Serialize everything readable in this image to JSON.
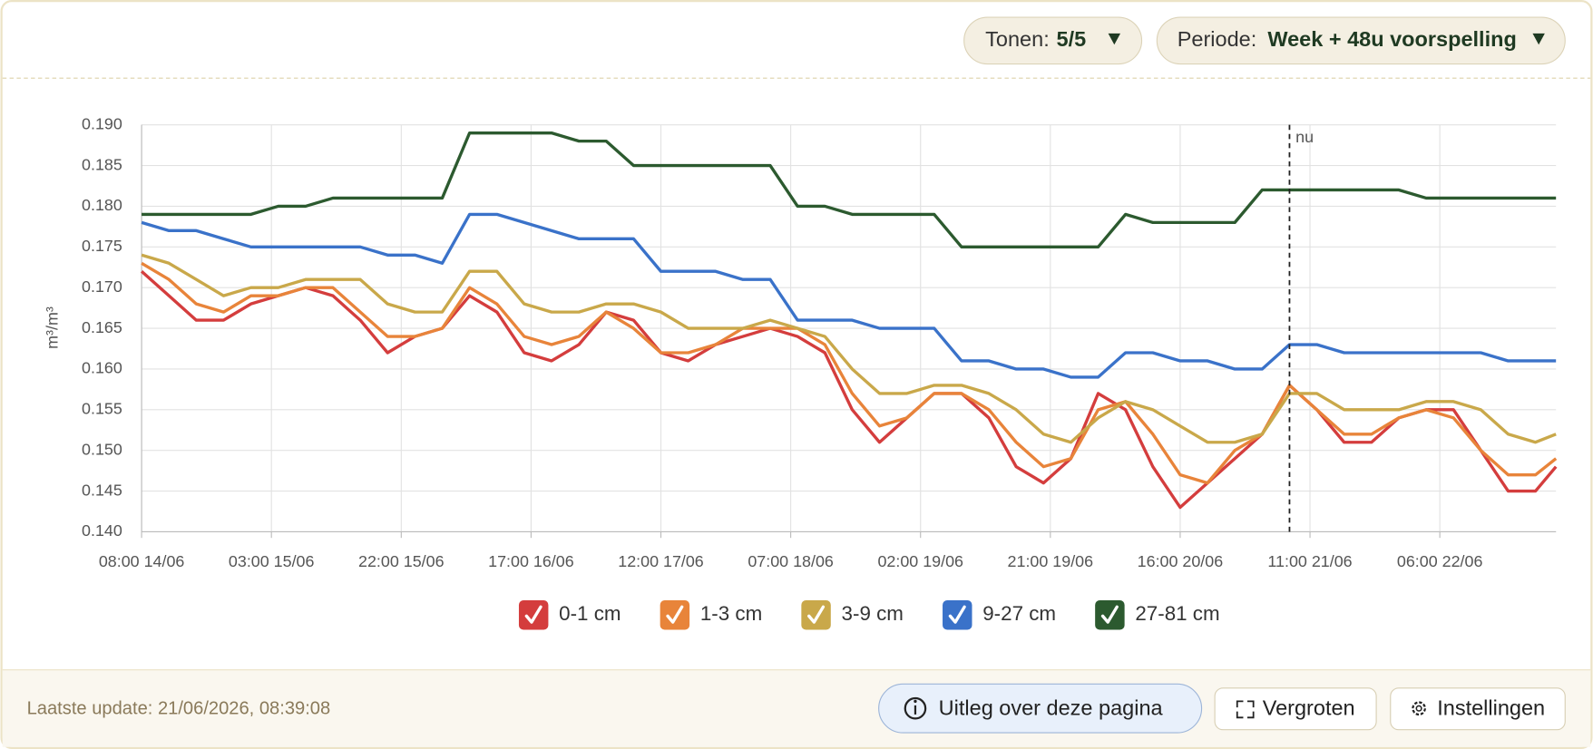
{
  "toolbar": {
    "tones_label": "Tonen:",
    "tones_value": "5/5",
    "period_label": "Periode:",
    "period_value": "Week + 48u voorspelling"
  },
  "chart_data": {
    "type": "line",
    "ylabel": "m³/m³",
    "x": [
      0,
      4,
      8,
      12,
      16,
      20,
      24,
      28,
      32,
      36,
      40,
      44,
      48,
      52,
      56,
      60,
      64,
      68,
      72,
      76,
      80,
      84,
      88,
      92,
      96,
      100,
      104,
      108,
      112,
      116,
      120,
      124,
      128,
      132,
      136,
      140,
      144,
      148,
      152,
      156,
      160,
      164,
      168,
      172,
      176,
      180,
      184,
      188,
      192,
      196,
      200,
      204,
      207
    ],
    "xlim": [
      0,
      207
    ],
    "xticks": [
      {
        "value": 0,
        "label": "08:00 14/06"
      },
      {
        "value": 19,
        "label": "03:00 15/06"
      },
      {
        "value": 38,
        "label": "22:00 15/06"
      },
      {
        "value": 57,
        "label": "17:00 16/06"
      },
      {
        "value": 76,
        "label": "12:00 17/06"
      },
      {
        "value": 95,
        "label": "07:00 18/06"
      },
      {
        "value": 114,
        "label": "02:00 19/06"
      },
      {
        "value": 133,
        "label": "21:00 19/06"
      },
      {
        "value": 152,
        "label": "16:00 20/06"
      },
      {
        "value": 171,
        "label": "11:00 21/06"
      },
      {
        "value": 190,
        "label": "06:00 22/06"
      }
    ],
    "ylim": [
      0.14,
      0.19
    ],
    "yticks": [
      {
        "value": 0.14,
        "label": "0.140"
      },
      0.145,
      {
        "value": 0.15,
        "label": "0.150"
      },
      0.155,
      {
        "value": 0.16,
        "label": "0.160"
      },
      0.165,
      {
        "value": 0.17,
        "label": "0.170"
      },
      0.175,
      {
        "value": 0.18,
        "label": "0.180"
      },
      0.185,
      {
        "value": 0.19,
        "label": "0.190"
      }
    ],
    "grid": true,
    "annotation": {
      "x": 168,
      "label": "nu"
    },
    "series": [
      {
        "name": "0-1 cm",
        "color": "#d43d3d",
        "values": [
          0.172,
          0.169,
          0.166,
          0.166,
          0.168,
          0.169,
          0.17,
          0.169,
          0.166,
          0.162,
          0.164,
          0.165,
          0.169,
          0.167,
          0.162,
          0.161,
          0.163,
          0.167,
          0.166,
          0.162,
          0.161,
          0.163,
          0.164,
          0.165,
          0.164,
          0.162,
          0.155,
          0.151,
          0.154,
          0.157,
          0.157,
          0.154,
          0.148,
          0.146,
          0.149,
          0.157,
          0.155,
          0.148,
          0.143,
          0.146,
          0.149,
          0.152,
          0.158,
          0.155,
          0.151,
          0.151,
          0.154,
          0.155,
          0.155,
          0.15,
          0.145,
          0.145,
          0.148
        ]
      },
      {
        "name": "1-3 cm",
        "color": "#e8843a",
        "values": [
          0.173,
          0.171,
          0.168,
          0.167,
          0.169,
          0.169,
          0.17,
          0.17,
          0.167,
          0.164,
          0.164,
          0.165,
          0.17,
          0.168,
          0.164,
          0.163,
          0.164,
          0.167,
          0.165,
          0.162,
          0.162,
          0.163,
          0.165,
          0.165,
          0.165,
          0.163,
          0.157,
          0.153,
          0.154,
          0.157,
          0.157,
          0.155,
          0.151,
          0.148,
          0.149,
          0.155,
          0.156,
          0.152,
          0.147,
          0.146,
          0.15,
          0.152,
          0.158,
          0.155,
          0.152,
          0.152,
          0.154,
          0.155,
          0.154,
          0.15,
          0.147,
          0.147,
          0.149
        ]
      },
      {
        "name": "3-9 cm",
        "color": "#c9a84a",
        "values": [
          0.174,
          0.173,
          0.171,
          0.169,
          0.17,
          0.17,
          0.171,
          0.171,
          0.171,
          0.168,
          0.167,
          0.167,
          0.172,
          0.172,
          0.168,
          0.167,
          0.167,
          0.168,
          0.168,
          0.167,
          0.165,
          0.165,
          0.165,
          0.166,
          0.165,
          0.164,
          0.16,
          0.157,
          0.157,
          0.158,
          0.158,
          0.157,
          0.155,
          0.152,
          0.151,
          0.154,
          0.156,
          0.155,
          0.153,
          0.151,
          0.151,
          0.152,
          0.157,
          0.157,
          0.155,
          0.155,
          0.155,
          0.156,
          0.156,
          0.155,
          0.152,
          0.151,
          0.152
        ]
      },
      {
        "name": "9-27 cm",
        "color": "#3a72c9",
        "values": [
          0.178,
          0.177,
          0.177,
          0.176,
          0.175,
          0.175,
          0.175,
          0.175,
          0.175,
          0.174,
          0.174,
          0.173,
          0.179,
          0.179,
          0.178,
          0.177,
          0.176,
          0.176,
          0.176,
          0.172,
          0.172,
          0.172,
          0.171,
          0.171,
          0.166,
          0.166,
          0.166,
          0.165,
          0.165,
          0.165,
          0.161,
          0.161,
          0.16,
          0.16,
          0.159,
          0.159,
          0.162,
          0.162,
          0.161,
          0.161,
          0.16,
          0.16,
          0.163,
          0.163,
          0.162,
          0.162,
          0.162,
          0.162,
          0.162,
          0.162,
          0.161,
          0.161,
          0.161
        ]
      },
      {
        "name": "27-81 cm",
        "color": "#2c5a2f",
        "values": [
          0.179,
          0.179,
          0.179,
          0.179,
          0.179,
          0.18,
          0.18,
          0.181,
          0.181,
          0.181,
          0.181,
          0.181,
          0.189,
          0.189,
          0.189,
          0.189,
          0.188,
          0.188,
          0.185,
          0.185,
          0.185,
          0.185,
          0.185,
          0.185,
          0.18,
          0.18,
          0.179,
          0.179,
          0.179,
          0.179,
          0.175,
          0.175,
          0.175,
          0.175,
          0.175,
          0.175,
          0.179,
          0.178,
          0.178,
          0.178,
          0.178,
          0.182,
          0.182,
          0.182,
          0.182,
          0.182,
          0.182,
          0.181,
          0.181,
          0.181,
          0.181,
          0.181,
          0.181
        ]
      }
    ]
  },
  "footer": {
    "last_update": "Laatste update: 21/06/2026, 08:39:08",
    "info_button": "Uitleg over deze pagina",
    "enlarge_button": "Vergroten",
    "settings_button": "Instellingen"
  }
}
